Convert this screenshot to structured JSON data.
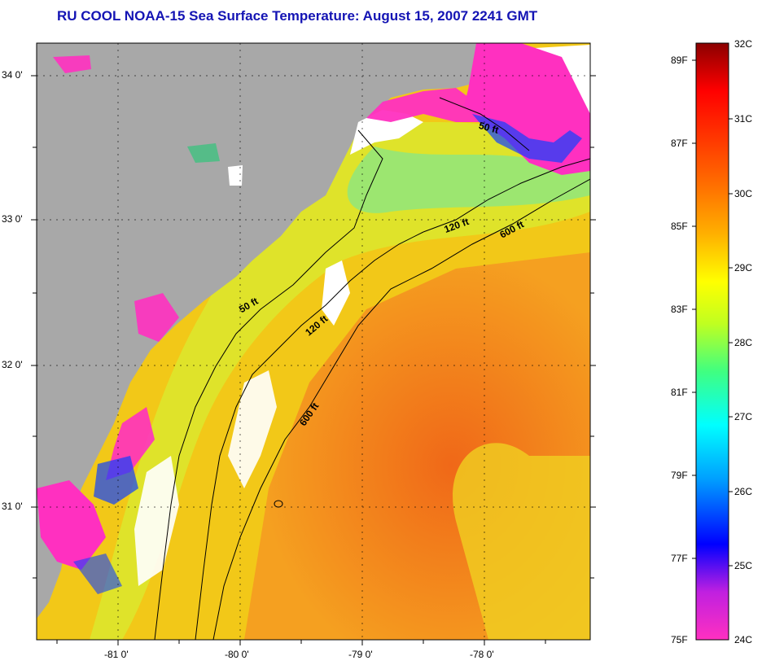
{
  "title": "RU COOL  NOAA-15  Sea Surface Temperature:  August 15, 2007 2241 GMT",
  "map": {
    "lat_labels": [
      "34 0'",
      "33 0'",
      "32 0'",
      "31 0'"
    ],
    "lon_labels": [
      "-81 0'",
      "-80 0'",
      "-79 0'",
      "-78 0'"
    ],
    "isobath_labels": [
      "50 ft",
      "120 ft",
      "600 ft",
      "50 ft",
      "120 ft",
      "600 ft"
    ],
    "colors": {
      "land": "#a8a8a8",
      "cloud": "#ffffff",
      "warm_offshore": "#f07818",
      "nearshore": "#f0d810",
      "cool_nearshore": "#ff30c0"
    }
  },
  "colorbar": {
    "celsius_labels": [
      "32C",
      "31C",
      "30C",
      "29C",
      "28C",
      "27C",
      "26C",
      "25C",
      "24C"
    ],
    "fahrenheit_labels": [
      "89F",
      "87F",
      "85F",
      "83F",
      "81F",
      "79F",
      "77F",
      "75F"
    ],
    "colors_bottom_to_top": [
      "#ff30c0",
      "#c020e0",
      "#0000ff",
      "#00a0ff",
      "#00ffff",
      "#40ff80",
      "#c0ff20",
      "#ffff00",
      "#ffb000",
      "#ff7000",
      "#ff3000",
      "#ff0000",
      "#8b0000"
    ]
  }
}
